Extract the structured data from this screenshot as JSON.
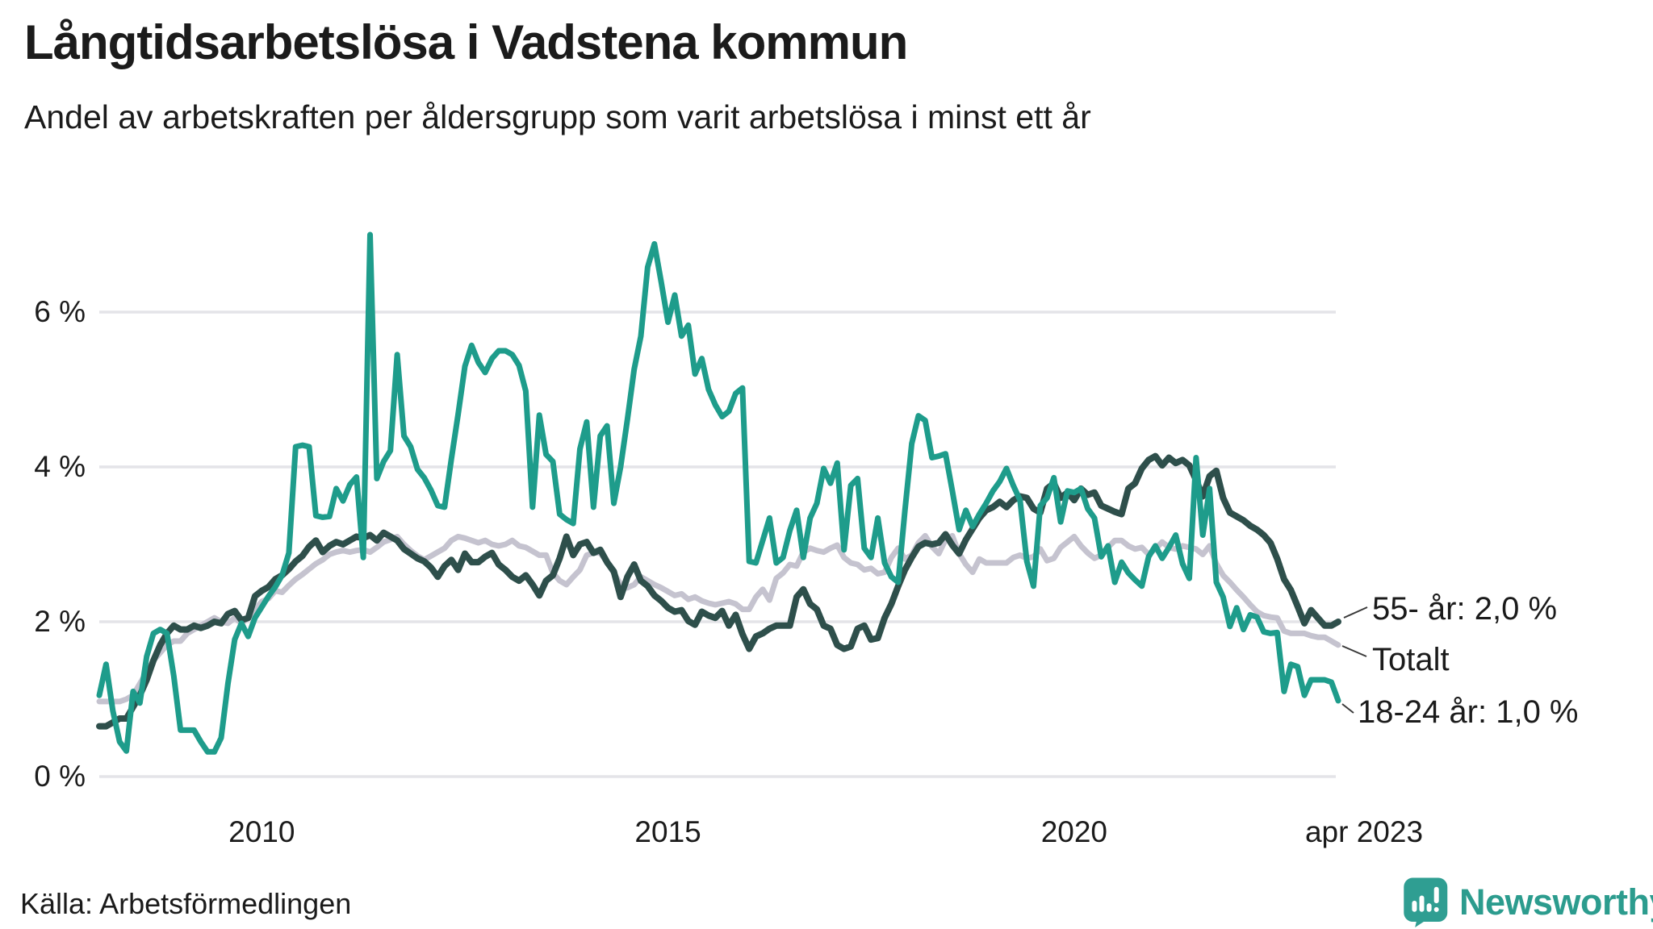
{
  "header": {
    "title": "Långtidsarbetslösa i Vadstena kommun",
    "subtitle": "Andel av arbetskraften per åldersgrupp som varit arbetslösa i minst ett år"
  },
  "footer": {
    "source": "Källa: Arbetsförmedlingen"
  },
  "branding": {
    "name": "Newsworthy",
    "icon": "bar-chart-speech-bubble-icon",
    "icon_color": "#2F9E92",
    "text_color": "#2C9C8E"
  },
  "chart_data": {
    "type": "line",
    "title": "Långtidsarbetslösa i Vadstena kommun",
    "x_unit": "month",
    "x_start": "2008-01",
    "x_end": "2023-04",
    "n_points": 184,
    "x_ticks": [
      {
        "label": "2010",
        "t": 24
      },
      {
        "label": "2015",
        "t": 84
      },
      {
        "label": "2020",
        "t": 144
      },
      {
        "label": "apr 2023",
        "t": 183
      }
    ],
    "y_ticks": [
      {
        "value": 0,
        "label": "0 %"
      },
      {
        "value": 2,
        "label": "2 %"
      },
      {
        "value": 4,
        "label": "4 %"
      },
      {
        "value": 6,
        "label": "6 %"
      }
    ],
    "ylim": [
      0,
      7.1
    ],
    "grid": true,
    "grid_color": "#E4E4E8",
    "legend_position": "right-end-labels",
    "series": [
      {
        "name": "Totalt",
        "end_label": "Totalt",
        "color": "#C5C3CF",
        "values": [
          0.97,
          0.97,
          0.97,
          0.97,
          1.0,
          1.05,
          1.2,
          1.35,
          1.5,
          1.6,
          1.7,
          1.75,
          1.75,
          1.85,
          1.9,
          1.95,
          2.0,
          2.05,
          2.0,
          1.98,
          2.05,
          1.98,
          2.05,
          2.16,
          2.26,
          2.3,
          2.4,
          2.38,
          2.47,
          2.55,
          2.61,
          2.68,
          2.75,
          2.8,
          2.87,
          2.9,
          2.92,
          2.9,
          2.92,
          2.93,
          2.9,
          2.96,
          3.03,
          3.06,
          3.1,
          3.0,
          2.92,
          2.85,
          2.8,
          2.85,
          2.9,
          2.95,
          3.05,
          3.1,
          3.08,
          3.05,
          3.02,
          3.05,
          3.0,
          2.98,
          3.0,
          3.05,
          2.98,
          2.96,
          2.91,
          2.86,
          2.86,
          2.63,
          2.53,
          2.48,
          2.58,
          2.67,
          2.86,
          2.89,
          2.89,
          2.77,
          2.63,
          2.48,
          2.44,
          2.48,
          2.58,
          2.53,
          2.48,
          2.44,
          2.39,
          2.34,
          2.36,
          2.29,
          2.32,
          2.27,
          2.24,
          2.22,
          2.24,
          2.26,
          2.23,
          2.16,
          2.16,
          2.32,
          2.42,
          2.28,
          2.56,
          2.63,
          2.74,
          2.72,
          2.9,
          2.95,
          2.92,
          2.9,
          2.95,
          2.99,
          2.83,
          2.76,
          2.74,
          2.67,
          2.69,
          2.62,
          2.64,
          2.83,
          2.95,
          2.81,
          2.86,
          3.02,
          3.11,
          2.97,
          2.88,
          3.06,
          3.11,
          2.88,
          2.74,
          2.64,
          2.81,
          2.76,
          2.76,
          2.76,
          2.76,
          2.83,
          2.86,
          2.82,
          2.84,
          2.94,
          2.79,
          2.82,
          2.96,
          3.03,
          3.1,
          2.98,
          2.89,
          2.82,
          2.86,
          2.96,
          3.05,
          3.05,
          2.98,
          2.94,
          2.96,
          2.87,
          2.94,
          3.03,
          2.96,
          2.94,
          2.98,
          2.96,
          2.94,
          2.87,
          2.98,
          2.75,
          2.6,
          2.51,
          2.41,
          2.32,
          2.22,
          2.13,
          2.08,
          2.06,
          2.05,
          1.88,
          1.85,
          1.85,
          1.85,
          1.82,
          1.8,
          1.8,
          1.75,
          1.7
        ]
      },
      {
        "name": "55- år",
        "end_label": "55- år: 2,0 %",
        "color": "#2E4F4B",
        "values": [
          0.65,
          0.65,
          0.7,
          0.75,
          0.75,
          0.9,
          1.05,
          1.25,
          1.5,
          1.7,
          1.85,
          1.95,
          1.9,
          1.9,
          1.95,
          1.92,
          1.95,
          2.0,
          1.98,
          2.1,
          2.14,
          2.02,
          2.05,
          2.33,
          2.4,
          2.45,
          2.55,
          2.6,
          2.68,
          2.78,
          2.85,
          2.97,
          3.05,
          2.9,
          2.98,
          3.03,
          3.0,
          3.05,
          3.1,
          3.08,
          3.12,
          3.05,
          3.15,
          3.1,
          3.05,
          2.94,
          2.88,
          2.82,
          2.78,
          2.7,
          2.58,
          2.72,
          2.8,
          2.67,
          2.88,
          2.77,
          2.77,
          2.84,
          2.89,
          2.74,
          2.67,
          2.58,
          2.53,
          2.6,
          2.48,
          2.34,
          2.53,
          2.6,
          2.82,
          3.1,
          2.86,
          3.0,
          3.03,
          2.89,
          2.93,
          2.77,
          2.65,
          2.32,
          2.58,
          2.74,
          2.53,
          2.46,
          2.34,
          2.27,
          2.18,
          2.13,
          2.15,
          2.01,
          1.96,
          2.13,
          2.08,
          2.05,
          2.14,
          1.95,
          2.09,
          1.84,
          1.65,
          1.81,
          1.85,
          1.91,
          1.95,
          1.95,
          1.95,
          2.32,
          2.42,
          2.23,
          2.16,
          1.95,
          1.91,
          1.7,
          1.65,
          1.68,
          1.91,
          1.95,
          1.77,
          1.79,
          2.05,
          2.23,
          2.46,
          2.67,
          2.83,
          2.97,
          3.02,
          3.0,
          3.02,
          3.13,
          2.99,
          2.88,
          3.06,
          3.2,
          3.34,
          3.44,
          3.48,
          3.55,
          3.48,
          3.57,
          3.62,
          3.6,
          3.46,
          3.41,
          3.72,
          3.79,
          3.6,
          3.67,
          3.57,
          3.72,
          3.64,
          3.67,
          3.5,
          3.46,
          3.42,
          3.39,
          3.72,
          3.79,
          3.98,
          4.09,
          4.14,
          4.02,
          4.12,
          4.05,
          4.09,
          4.02,
          3.83,
          3.62,
          3.88,
          3.95,
          3.6,
          3.41,
          3.36,
          3.31,
          3.24,
          3.19,
          3.12,
          3.02,
          2.81,
          2.55,
          2.41,
          2.2,
          1.98,
          2.15,
          2.05,
          1.95,
          1.95,
          2.0
        ]
      },
      {
        "name": "18-24 år",
        "end_label": "18-24 år: 1,0 %",
        "color": "#1E9C8B",
        "values": [
          1.05,
          1.45,
          0.85,
          0.45,
          0.33,
          1.1,
          0.95,
          1.55,
          1.85,
          1.9,
          1.85,
          1.3,
          0.6,
          0.6,
          0.6,
          0.45,
          0.32,
          0.32,
          0.5,
          1.2,
          1.77,
          1.98,
          1.81,
          2.05,
          2.19,
          2.33,
          2.45,
          2.6,
          2.89,
          4.26,
          4.28,
          4.26,
          3.37,
          3.35,
          3.36,
          3.72,
          3.56,
          3.77,
          3.87,
          2.83,
          7.0,
          3.85,
          4.07,
          4.21,
          5.45,
          4.4,
          4.26,
          3.97,
          3.86,
          3.7,
          3.5,
          3.48,
          4.1,
          4.68,
          5.3,
          5.57,
          5.35,
          5.22,
          5.4,
          5.5,
          5.5,
          5.45,
          5.31,
          4.98,
          3.48,
          4.67,
          4.16,
          4.07,
          3.39,
          3.32,
          3.27,
          4.23,
          4.58,
          3.48,
          4.4,
          4.53,
          3.53,
          4.0,
          4.61,
          5.26,
          5.69,
          6.58,
          6.88,
          6.39,
          5.87,
          6.22,
          5.69,
          5.83,
          5.2,
          5.4,
          5.0,
          4.8,
          4.65,
          4.72,
          4.95,
          5.02,
          2.78,
          2.76,
          3.05,
          3.34,
          2.76,
          2.83,
          3.18,
          3.44,
          2.83,
          3.34,
          3.53,
          3.98,
          3.79,
          4.05,
          2.93,
          3.76,
          3.85,
          2.95,
          2.83,
          3.34,
          2.76,
          2.58,
          2.51,
          3.44,
          4.3,
          4.66,
          4.6,
          4.12,
          4.14,
          4.17,
          3.69,
          3.19,
          3.44,
          3.23,
          3.39,
          3.53,
          3.69,
          3.81,
          3.98,
          3.76,
          3.57,
          2.78,
          2.46,
          3.5,
          3.6,
          3.86,
          3.29,
          3.69,
          3.67,
          3.72,
          3.46,
          3.34,
          2.84,
          2.98,
          2.51,
          2.77,
          2.63,
          2.54,
          2.46,
          2.84,
          2.98,
          2.82,
          2.96,
          3.12,
          2.75,
          2.56,
          4.12,
          3.12,
          3.72,
          2.51,
          2.32,
          1.94,
          2.18,
          1.9,
          2.09,
          2.06,
          1.87,
          1.85,
          1.86,
          1.1,
          1.45,
          1.42,
          1.05,
          1.25,
          1.25,
          1.25,
          1.22,
          0.98
        ]
      }
    ]
  }
}
